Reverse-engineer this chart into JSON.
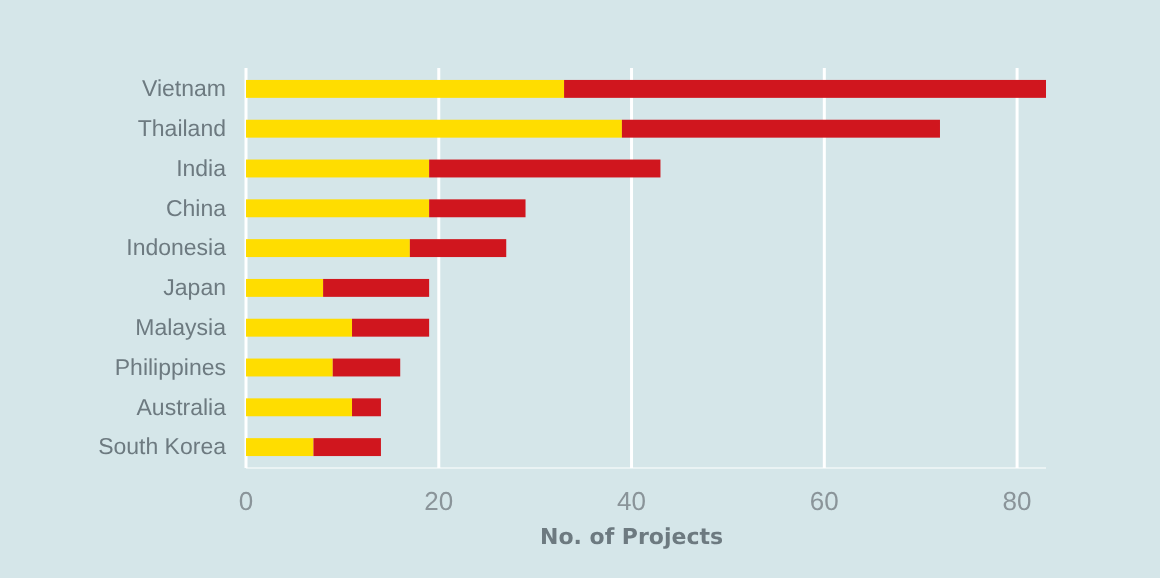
{
  "chart_data": {
    "type": "bar",
    "orientation": "horizontal",
    "stacked": true,
    "xlabel": "No. of Projects",
    "categories": [
      "Vietnam",
      "Thailand",
      "India",
      "China",
      "Indonesia",
      "Japan",
      "Malaysia",
      "Philippines",
      "Australia",
      "South Korea"
    ],
    "series": [
      {
        "color": "#ffdd00",
        "values": [
          33,
          39,
          19,
          19,
          17,
          8,
          11,
          9,
          11,
          7
        ]
      },
      {
        "color": "#d0161e",
        "values": [
          50,
          33,
          24,
          10,
          10,
          11,
          8,
          7,
          3,
          7
        ]
      }
    ],
    "xlim": [
      0,
      83
    ],
    "xticks": [
      0,
      20,
      40,
      60,
      80
    ],
    "grid": "x"
  }
}
